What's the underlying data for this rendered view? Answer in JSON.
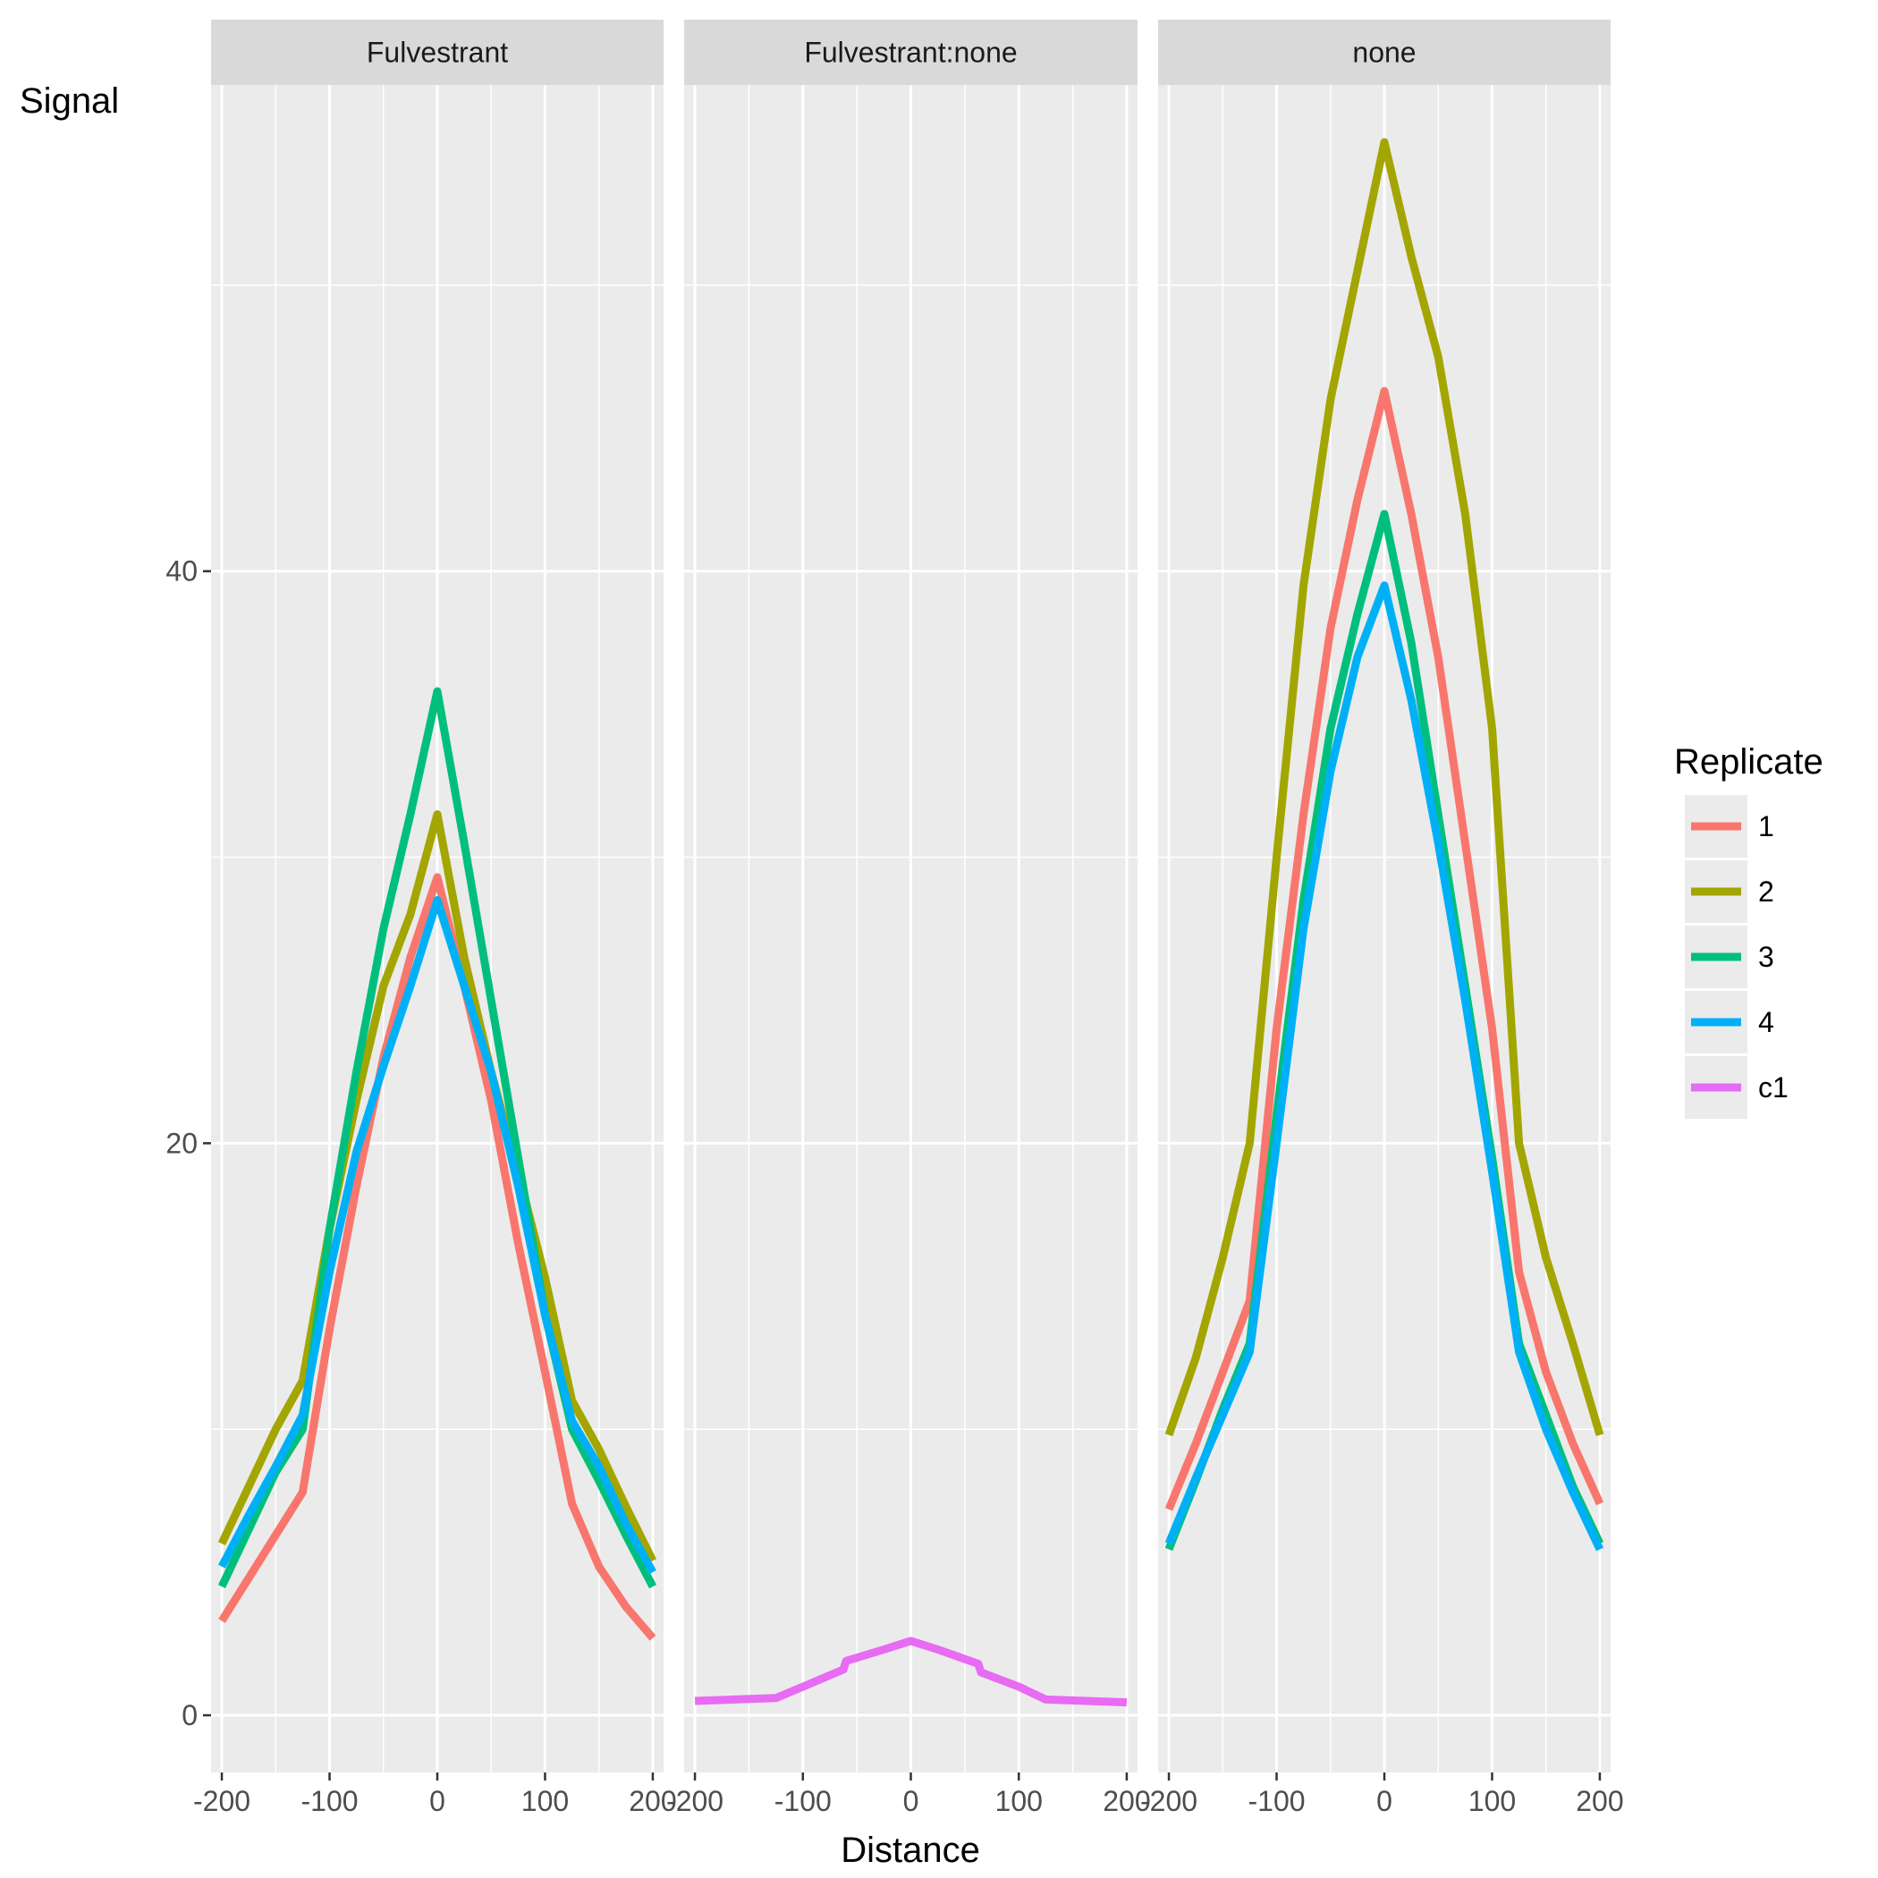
{
  "chart_data": {
    "type": "line",
    "xlabel": "Distance",
    "ylabel": "Signal",
    "xlim": [
      -210,
      210
    ],
    "ylim": [
      -2,
      57
    ],
    "x_ticks": [
      -200,
      -100,
      0,
      100,
      200
    ],
    "y_ticks": [
      0,
      20,
      40
    ],
    "grid": true,
    "legend": {
      "title": "Replicate",
      "position": "right",
      "entries": [
        {
          "label": "1",
          "color": "#F8766D"
        },
        {
          "label": "2",
          "color": "#A3A500"
        },
        {
          "label": "3",
          "color": "#00BF7D"
        },
        {
          "label": "4",
          "color": "#00B0F6"
        },
        {
          "label": "c1",
          "color": "#E76BF3"
        }
      ]
    },
    "panels": [
      {
        "title": "Fulvestrant",
        "series": [
          {
            "name": "1",
            "color": "#F8766D",
            "points": [
              [
                -200,
                3.3
              ],
              [
                -175,
                4.8
              ],
              [
                -150,
                6.3
              ],
              [
                -125,
                7.8
              ],
              [
                -100,
                13.5
              ],
              [
                -75,
                18.5
              ],
              [
                -50,
                23.0
              ],
              [
                -25,
                26.5
              ],
              [
                0,
                29.3
              ],
              [
                25,
                25.5
              ],
              [
                50,
                21.5
              ],
              [
                75,
                16.5
              ],
              [
                100,
                12.0
              ],
              [
                125,
                7.4
              ],
              [
                150,
                5.2
              ],
              [
                175,
                3.8
              ],
              [
                200,
                2.7
              ]
            ]
          },
          {
            "name": "2",
            "color": "#A3A500",
            "points": [
              [
                -200,
                6.0
              ],
              [
                -175,
                8.0
              ],
              [
                -150,
                10.0
              ],
              [
                -125,
                11.7
              ],
              [
                -100,
                17.0
              ],
              [
                -75,
                21.5
              ],
              [
                -50,
                25.5
              ],
              [
                -25,
                28.0
              ],
              [
                0,
                31.5
              ],
              [
                25,
                26.5
              ],
              [
                50,
                22.5
              ],
              [
                75,
                19.0
              ],
              [
                100,
                15.3
              ],
              [
                125,
                11.0
              ],
              [
                150,
                9.3
              ],
              [
                175,
                7.3
              ],
              [
                200,
                5.4
              ]
            ]
          },
          {
            "name": "3",
            "color": "#00BF7D",
            "points": [
              [
                -200,
                4.5
              ],
              [
                -175,
                6.5
              ],
              [
                -150,
                8.5
              ],
              [
                -125,
                10.0
              ],
              [
                -100,
                17.0
              ],
              [
                -75,
                22.5
              ],
              [
                -50,
                27.5
              ],
              [
                -25,
                31.5
              ],
              [
                0,
                35.8
              ],
              [
                25,
                30.5
              ],
              [
                50,
                25.0
              ],
              [
                75,
                19.5
              ],
              [
                100,
                14.0
              ],
              [
                125,
                10.0
              ],
              [
                150,
                8.2
              ],
              [
                175,
                6.3
              ],
              [
                200,
                4.5
              ]
            ]
          },
          {
            "name": "4",
            "color": "#00B0F6",
            "points": [
              [
                -200,
                5.2
              ],
              [
                -175,
                7.0
              ],
              [
                -150,
                8.7
              ],
              [
                -125,
                10.5
              ],
              [
                -100,
                15.5
              ],
              [
                -75,
                19.7
              ],
              [
                -50,
                22.7
              ],
              [
                -25,
                25.5
              ],
              [
                0,
                28.5
              ],
              [
                25,
                25.5
              ],
              [
                50,
                22.5
              ],
              [
                75,
                18.5
              ],
              [
                100,
                14.0
              ],
              [
                125,
                10.3
              ],
              [
                150,
                8.7
              ],
              [
                175,
                6.7
              ],
              [
                200,
                5.0
              ]
            ]
          }
        ]
      },
      {
        "title": "Fulvestrant:none",
        "series": [
          {
            "name": "c1",
            "color": "#E76BF3",
            "points": [
              [
                -200,
                0.5
              ],
              [
                -125,
                0.6
              ],
              [
                -100,
                1.0
              ],
              [
                -62.5,
                1.6
              ],
              [
                -60,
                1.9
              ],
              [
                -25,
                2.3
              ],
              [
                0,
                2.6
              ],
              [
                25,
                2.3
              ],
              [
                62.5,
                1.8
              ],
              [
                65,
                1.5
              ],
              [
                100,
                1.0
              ],
              [
                125,
                0.55
              ],
              [
                200,
                0.45
              ]
            ]
          }
        ]
      },
      {
        "title": "none",
        "series": [
          {
            "name": "1",
            "color": "#F8766D",
            "points": [
              [
                -200,
                7.2
              ],
              [
                -175,
                9.5
              ],
              [
                -150,
                12.0
              ],
              [
                -125,
                14.5
              ],
              [
                -100,
                24.0
              ],
              [
                -75,
                31.5
              ],
              [
                -50,
                38.0
              ],
              [
                -25,
                42.5
              ],
              [
                0,
                46.3
              ],
              [
                25,
                42.0
              ],
              [
                50,
                37.0
              ],
              [
                75,
                30.5
              ],
              [
                100,
                24.0
              ],
              [
                125,
                15.5
              ],
              [
                150,
                12.0
              ],
              [
                175,
                9.5
              ],
              [
                200,
                7.4
              ]
            ]
          },
          {
            "name": "2",
            "color": "#A3A500",
            "points": [
              [
                -200,
                9.8
              ],
              [
                -175,
                12.5
              ],
              [
                -150,
                16.0
              ],
              [
                -125,
                20.0
              ],
              [
                -100,
                30.0
              ],
              [
                -75,
                39.5
              ],
              [
                -50,
                46.0
              ],
              [
                -25,
                50.5
              ],
              [
                0,
                55.0
              ],
              [
                25,
                51.0
              ],
              [
                50,
                47.5
              ],
              [
                75,
                42.0
              ],
              [
                100,
                34.5
              ],
              [
                125,
                20.0
              ],
              [
                150,
                16.0
              ],
              [
                175,
                13.0
              ],
              [
                200,
                9.8
              ]
            ]
          },
          {
            "name": "3",
            "color": "#00BF7D",
            "points": [
              [
                -200,
                5.8
              ],
              [
                -175,
                8.2
              ],
              [
                -150,
                10.7
              ],
              [
                -125,
                13.0
              ],
              [
                -100,
                21.0
              ],
              [
                -75,
                28.5
              ],
              [
                -50,
                34.5
              ],
              [
                -25,
                38.5
              ],
              [
                0,
                42.0
              ],
              [
                25,
                37.5
              ],
              [
                50,
                31.5
              ],
              [
                75,
                25.5
              ],
              [
                100,
                19.5
              ],
              [
                125,
                13.0
              ],
              [
                150,
                10.5
              ],
              [
                175,
                8.0
              ],
              [
                200,
                6.0
              ]
            ]
          },
          {
            "name": "4",
            "color": "#00B0F6",
            "points": [
              [
                -200,
                6.0
              ],
              [
                -175,
                8.3
              ],
              [
                -150,
                10.5
              ],
              [
                -125,
                12.7
              ],
              [
                -100,
                20.0
              ],
              [
                -75,
                27.5
              ],
              [
                -50,
                33.0
              ],
              [
                -25,
                37.0
              ],
              [
                0,
                39.5
              ],
              [
                25,
                35.5
              ],
              [
                50,
                30.5
              ],
              [
                75,
                25.0
              ],
              [
                100,
                19.0
              ],
              [
                125,
                12.7
              ],
              [
                150,
                10.0
              ],
              [
                175,
                7.8
              ],
              [
                200,
                5.8
              ]
            ]
          }
        ]
      }
    ]
  }
}
